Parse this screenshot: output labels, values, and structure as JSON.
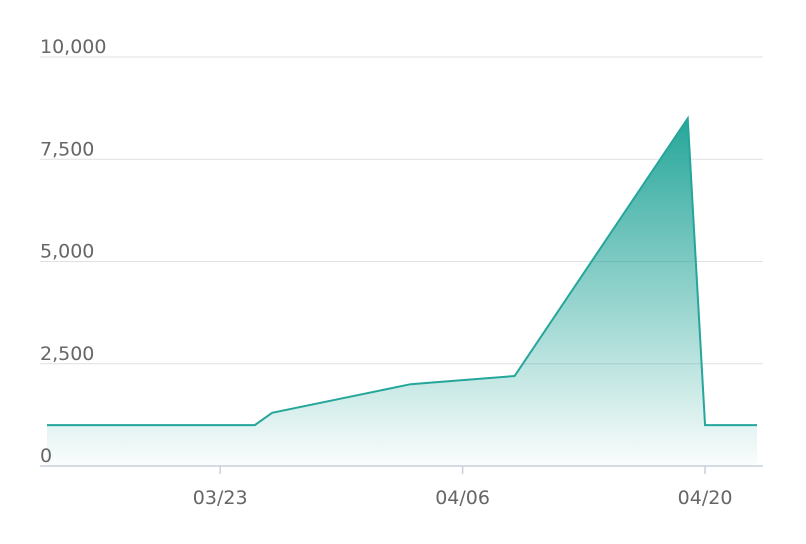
{
  "chart_data": {
    "type": "area",
    "color": "#26a69a",
    "x": [
      "03/13",
      "03/25",
      "03/26",
      "04/03",
      "04/09",
      "04/19",
      "04/20",
      "04/23"
    ],
    "values": [
      1000,
      1000,
      1300,
      2000,
      2200,
      8500,
      1000,
      1000
    ],
    "xlim": [
      "03/13",
      "04/23"
    ],
    "xticks": [
      "03/23",
      "04/06",
      "04/20"
    ],
    "ylim": [
      0,
      10000
    ],
    "yticks": [
      0,
      {
        "value": 2500,
        "label": "2,500"
      },
      {
        "value": 5000,
        "label": "5,000"
      },
      {
        "value": 7500,
        "label": "7,500"
      },
      {
        "value": 10000,
        "label": "10,000"
      }
    ],
    "grid": true
  }
}
